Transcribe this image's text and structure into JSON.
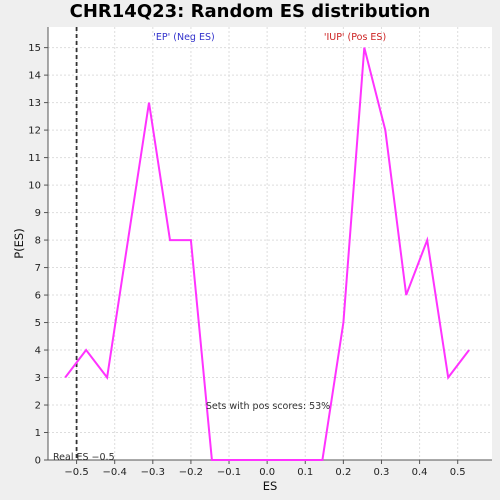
{
  "chart_data": {
    "type": "line",
    "title": "CHR14Q23: Random ES distribution",
    "xlabel": "ES",
    "ylabel": "P(ES)",
    "xlim": [
      -0.575,
      0.59
    ],
    "ylim": [
      0,
      15.75
    ],
    "x_ticks": [
      -0.5,
      -0.4,
      -0.3,
      -0.2,
      -0.1,
      0.0,
      0.1,
      0.2,
      0.3,
      0.4,
      0.5
    ],
    "x_tick_labels": [
      "−0.5",
      "−0.4",
      "−0.3",
      "−0.2",
      "−0.1",
      "0.0",
      "0.1",
      "0.2",
      "0.3",
      "0.4",
      "0.5"
    ],
    "y_ticks": [
      0,
      1,
      2,
      3,
      4,
      5,
      6,
      7,
      8,
      9,
      10,
      11,
      12,
      13,
      14,
      15
    ],
    "grid": true,
    "series": [
      {
        "color": "#ff33ff",
        "x": [
          -0.53,
          -0.475,
          -0.42,
          -0.365,
          -0.31,
          -0.255,
          -0.2,
          -0.145,
          -0.09,
          -0.035,
          0.02,
          0.075,
          0.145,
          0.2,
          0.255,
          0.31,
          0.365,
          0.42,
          0.475,
          0.53
        ],
        "y": [
          3,
          4,
          3,
          8,
          13,
          8,
          8,
          0,
          0,
          0,
          0,
          0,
          0,
          5,
          15,
          12,
          6,
          8,
          3,
          4
        ]
      }
    ],
    "real_es": -0.5,
    "annotations": {
      "neg_label": "'EP' (Neg ES)",
      "pos_label": "'IUP' (Pos ES)",
      "pos_scores": "Sets with pos scores: 53%",
      "real_es_label": "Real ES −0.5"
    },
    "colors": {
      "neg": "#3333cc",
      "pos": "#cc2222",
      "line": "#ff33ff",
      "grid": "#dddddd"
    }
  }
}
